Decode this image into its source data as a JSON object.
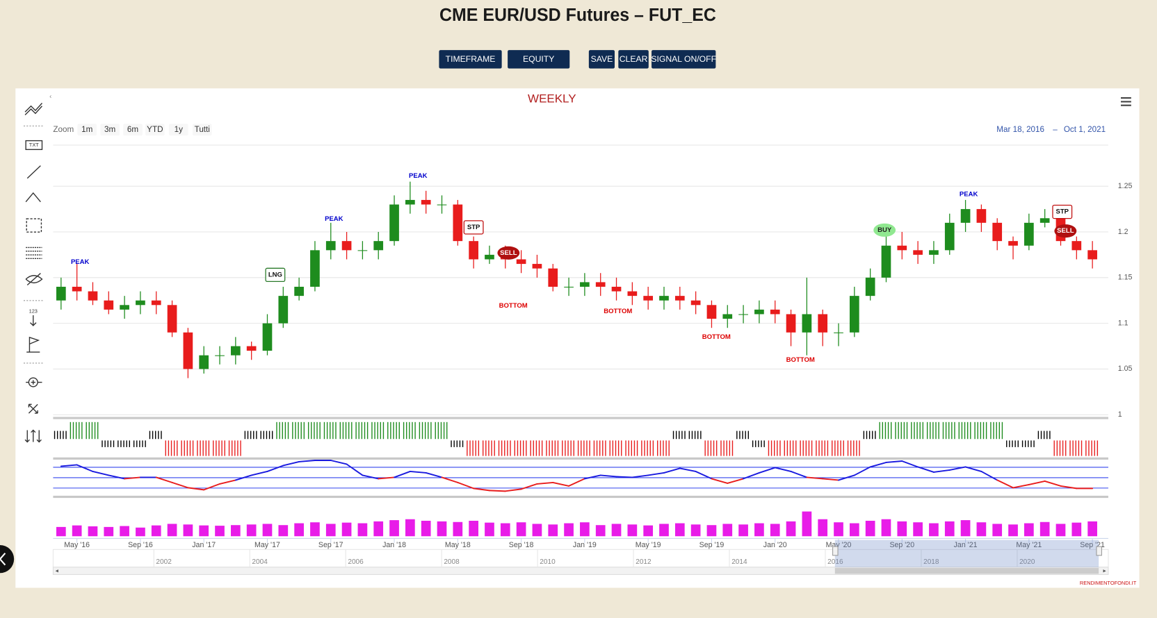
{
  "header": {
    "title": "CME EUR/USD Futures – FUT_EC",
    "buttons": [
      "TIMEFRAME",
      "EQUITY",
      "SAVE",
      "CLEAR",
      "SIGNAL ON/OFF"
    ]
  },
  "toolbar": {
    "text_icon": "TXT",
    "counter_icon": "123"
  },
  "chart_data": {
    "type": "candlestick",
    "title": "WEEKLY",
    "zoom_label": "Zoom",
    "zoom_buttons": [
      "1m",
      "3m",
      "6m",
      "YTD",
      "1y",
      "Tutti"
    ],
    "range_from": "Mar 18, 2016",
    "range_separator": "–",
    "range_to": "Oct 1, 2021",
    "x": [
      1,
      2,
      3,
      4,
      5,
      6,
      7,
      8,
      9,
      10,
      11,
      12,
      13,
      14,
      15,
      16,
      17,
      18,
      19,
      20,
      21,
      22,
      23,
      24,
      25,
      26,
      27,
      28,
      29,
      30,
      31,
      32,
      33,
      34,
      35,
      36,
      37,
      38,
      39,
      40,
      41,
      42,
      43,
      44,
      45,
      46,
      47,
      48,
      49,
      50,
      51,
      52,
      53,
      54,
      55,
      56,
      57,
      58,
      59,
      60,
      61,
      62,
      63,
      64,
      65,
      66
    ],
    "open": [
      1.125,
      1.14,
      1.135,
      1.125,
      1.115,
      1.12,
      1.125,
      1.12,
      1.09,
      1.05,
      1.065,
      1.065,
      1.075,
      1.07,
      1.1,
      1.13,
      1.14,
      1.18,
      1.19,
      1.18,
      1.18,
      1.19,
      1.23,
      1.235,
      1.23,
      1.23,
      1.19,
      1.17,
      1.175,
      1.17,
      1.165,
      1.16,
      1.14,
      1.14,
      1.145,
      1.14,
      1.135,
      1.13,
      1.125,
      1.13,
      1.125,
      1.12,
      1.105,
      1.11,
      1.11,
      1.115,
      1.11,
      1.09,
      1.11,
      1.09,
      1.09,
      1.13,
      1.15,
      1.185,
      1.18,
      1.175,
      1.18,
      1.21,
      1.225,
      1.21,
      1.19,
      1.185,
      1.21,
      1.215,
      1.19,
      1.18
    ],
    "high": [
      1.15,
      1.165,
      1.145,
      1.135,
      1.13,
      1.135,
      1.135,
      1.125,
      1.095,
      1.075,
      1.075,
      1.085,
      1.08,
      1.11,
      1.14,
      1.15,
      1.19,
      1.21,
      1.2,
      1.19,
      1.2,
      1.24,
      1.255,
      1.245,
      1.24,
      1.235,
      1.195,
      1.185,
      1.185,
      1.18,
      1.175,
      1.165,
      1.15,
      1.155,
      1.155,
      1.15,
      1.145,
      1.14,
      1.14,
      1.14,
      1.135,
      1.125,
      1.12,
      1.12,
      1.125,
      1.125,
      1.115,
      1.15,
      1.115,
      1.1,
      1.14,
      1.16,
      1.2,
      1.2,
      1.19,
      1.19,
      1.22,
      1.235,
      1.23,
      1.215,
      1.195,
      1.22,
      1.225,
      1.22,
      1.195,
      1.19
    ],
    "low": [
      1.115,
      1.125,
      1.12,
      1.11,
      1.105,
      1.11,
      1.11,
      1.085,
      1.04,
      1.045,
      1.055,
      1.055,
      1.06,
      1.065,
      1.095,
      1.125,
      1.135,
      1.17,
      1.17,
      1.17,
      1.17,
      1.185,
      1.22,
      1.22,
      1.22,
      1.185,
      1.16,
      1.165,
      1.16,
      1.155,
      1.15,
      1.135,
      1.13,
      1.13,
      1.13,
      1.125,
      1.12,
      1.115,
      1.115,
      1.115,
      1.11,
      1.095,
      1.095,
      1.1,
      1.1,
      1.1,
      1.075,
      1.065,
      1.075,
      1.075,
      1.085,
      1.125,
      1.145,
      1.17,
      1.165,
      1.165,
      1.175,
      1.2,
      1.2,
      1.18,
      1.17,
      1.18,
      1.205,
      1.185,
      1.17,
      1.16
    ],
    "close": [
      1.14,
      1.135,
      1.125,
      1.115,
      1.12,
      1.125,
      1.12,
      1.09,
      1.05,
      1.065,
      1.065,
      1.075,
      1.07,
      1.1,
      1.13,
      1.14,
      1.18,
      1.19,
      1.18,
      1.18,
      1.19,
      1.23,
      1.235,
      1.23,
      1.23,
      1.19,
      1.17,
      1.175,
      1.17,
      1.165,
      1.16,
      1.14,
      1.14,
      1.145,
      1.14,
      1.135,
      1.13,
      1.125,
      1.13,
      1.125,
      1.12,
      1.105,
      1.11,
      1.11,
      1.115,
      1.11,
      1.09,
      1.11,
      1.09,
      1.09,
      1.13,
      1.15,
      1.185,
      1.18,
      1.175,
      1.18,
      1.21,
      1.225,
      1.21,
      1.19,
      1.185,
      1.21,
      1.215,
      1.19,
      1.18,
      1.17
    ],
    "up_color": "#1e8c1e",
    "down_color": "#e81c1c",
    "xlim": [
      0.5,
      67
    ],
    "xticks": [
      {
        "value": 2,
        "label": "May '16"
      },
      {
        "value": 6,
        "label": "Sep '16"
      },
      {
        "value": 10,
        "label": "Jan '17"
      },
      {
        "value": 14,
        "label": "May '17"
      },
      {
        "value": 18,
        "label": "Sep '17"
      },
      {
        "value": 22,
        "label": "Jan '18"
      },
      {
        "value": 26,
        "label": "May '18"
      },
      {
        "value": 30,
        "label": "Sep '18"
      },
      {
        "value": 34,
        "label": "Jan '19"
      },
      {
        "value": 38,
        "label": "May '19"
      },
      {
        "value": 42,
        "label": "Sep '19"
      },
      {
        "value": 46,
        "label": "Jan '20"
      },
      {
        "value": 50,
        "label": "May '20"
      },
      {
        "value": 54,
        "label": "Sep '20"
      },
      {
        "value": 58,
        "label": "Jan '21"
      },
      {
        "value": 62,
        "label": "May '21"
      },
      {
        "value": 66,
        "label": "Sep '21"
      }
    ],
    "ylim": [
      1,
      1.295
    ],
    "yticks": [
      1.25,
      1.2,
      1.15,
      1.1,
      1.05,
      1
    ],
    "grid": true,
    "annotations": [
      {
        "text": "PEAK",
        "x": 2.2,
        "y": 1.167,
        "shape": "text",
        "color": "#0000cc"
      },
      {
        "text": "PEAK",
        "x": 18.2,
        "y": 1.214,
        "shape": "text",
        "color": "#0000cc"
      },
      {
        "text": "PEAK",
        "x": 23.5,
        "y": 1.261,
        "shape": "text",
        "color": "#0000cc"
      },
      {
        "text": "PEAK",
        "x": 58.2,
        "y": 1.241,
        "shape": "text",
        "color": "#0000cc"
      },
      {
        "text": "LNG",
        "x": 14.5,
        "y": 1.153,
        "shape": "box",
        "color": "#2a7a2a"
      },
      {
        "text": "STP",
        "x": 27,
        "y": 1.205,
        "shape": "box",
        "color": "#c01010"
      },
      {
        "text": "SELL",
        "x": 29.2,
        "y": 1.177,
        "shape": "pill",
        "color": "#b01010"
      },
      {
        "text": "BOTTOM",
        "x": 29.5,
        "y": 1.119,
        "shape": "text",
        "color": "#dd0000"
      },
      {
        "text": "BOTTOM",
        "x": 36.1,
        "y": 1.113,
        "shape": "text",
        "color": "#dd0000"
      },
      {
        "text": "BOTTOM",
        "x": 42.3,
        "y": 1.085,
        "shape": "text",
        "color": "#dd0000"
      },
      {
        "text": "BOTTOM",
        "x": 47.6,
        "y": 1.06,
        "shape": "text",
        "color": "#dd0000"
      },
      {
        "text": "BUY",
        "x": 52.9,
        "y": 1.202,
        "shape": "pill",
        "color": "#90e890"
      },
      {
        "text": "STP",
        "x": 64.1,
        "y": 1.222,
        "shape": "box",
        "color": "#c01010"
      },
      {
        "text": "SELL",
        "x": 64.3,
        "y": 1.201,
        "shape": "pill",
        "color": "#b01010"
      }
    ],
    "signal": {
      "values": [
        1,
        2,
        2,
        -1,
        -1,
        -1,
        1,
        -2,
        -2,
        -2,
        -2,
        -2,
        1,
        1,
        2,
        2,
        2,
        2,
        2,
        2,
        2,
        2,
        2,
        2,
        2,
        -1,
        -2,
        -2,
        -2,
        -2,
        -2,
        -2,
        -2,
        -2,
        -2,
        -2,
        -2,
        -2,
        -2,
        1,
        1,
        -2,
        -2,
        1,
        -1,
        -2,
        -2,
        -2,
        -2,
        -2,
        -2,
        1,
        2,
        2,
        2,
        2,
        2,
        2,
        2,
        2,
        -1,
        -1,
        1,
        -2,
        -2,
        -2
      ],
      "long_color": "#1e8c1e",
      "short_color": "#e81c1c",
      "flat_color": "#000000"
    },
    "oscillator": {
      "values": [
        83,
        87,
        68,
        57,
        47,
        51,
        51,
        36,
        21,
        15,
        32,
        43,
        57,
        68,
        85,
        96,
        100,
        100,
        89,
        57,
        47,
        51,
        68,
        64,
        51,
        36,
        19,
        13,
        11,
        17,
        32,
        36,
        26,
        47,
        57,
        53,
        51,
        57,
        64,
        77,
        68,
        47,
        34,
        47,
        64,
        79,
        68,
        51,
        47,
        43,
        57,
        81,
        94,
        98,
        81,
        66,
        72,
        81,
        68,
        43,
        21,
        30,
        40,
        26,
        19,
        19
      ],
      "ylim": [
        0,
        100
      ],
      "levels": [
        20,
        50,
        80
      ],
      "high_color": "#1a1adf",
      "low_color": "#e81c1c"
    },
    "volume": {
      "values": [
        30,
        35,
        32,
        30,
        33,
        28,
        35,
        40,
        38,
        35,
        34,
        36,
        38,
        40,
        36,
        42,
        45,
        40,
        44,
        42,
        48,
        52,
        55,
        50,
        48,
        46,
        50,
        44,
        42,
        45,
        40,
        38,
        42,
        45,
        36,
        40,
        38,
        35,
        40,
        42,
        38,
        36,
        40,
        38,
        42,
        40,
        48,
        80,
        55,
        45,
        42,
        50,
        55,
        48,
        45,
        42,
        48,
        52,
        45,
        40,
        38,
        42,
        46,
        40,
        44,
        48
      ],
      "ylim": [
        0,
        100
      ],
      "color": "#e81ce8"
    },
    "navigator": {
      "xlim": [
        1999.9,
        2021.9
      ],
      "xticks": [
        2002,
        2004,
        2006,
        2008,
        2010,
        2012,
        2014,
        2016,
        2018,
        2020
      ],
      "selection": [
        2016.2,
        2021.7
      ]
    }
  },
  "footer": {
    "credit": "RENDIMENTOFONDI.IT"
  }
}
